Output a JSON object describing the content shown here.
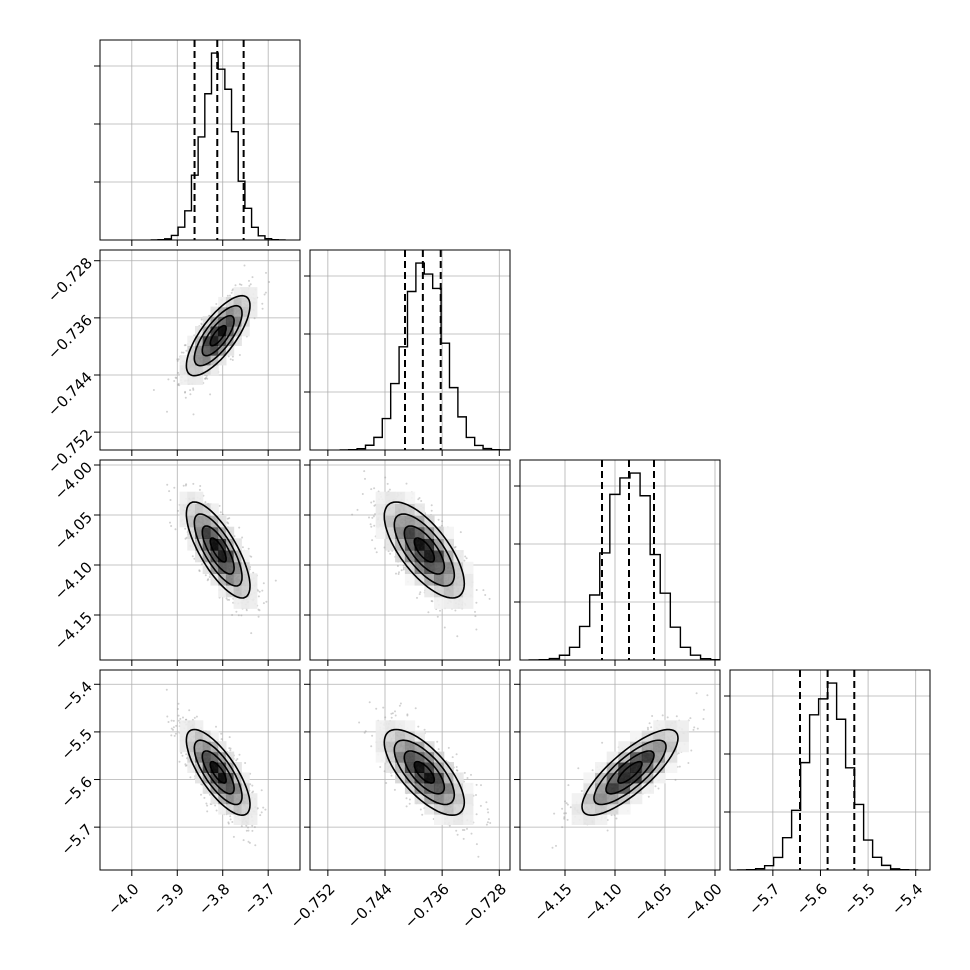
{
  "chart_data": {
    "type": "corner",
    "grid": true,
    "point_color": "#999999",
    "hist_color": "#000000",
    "parameters": [
      {
        "range": [
          -4.07,
          -3.63
        ],
        "ticks": [
          -4.0,
          -3.9,
          -3.8,
          -3.7
        ],
        "tick_labels": [
          "−4.0",
          "−3.9",
          "−3.8",
          "−3.7"
        ],
        "mean": -3.81,
        "sd": 0.035,
        "quantiles": [
          -3.862,
          -3.812,
          -3.754
        ]
      },
      {
        "range": [
          -0.7545,
          -0.7265
        ],
        "ticks": [
          -0.752,
          -0.744,
          -0.736,
          -0.728
        ],
        "tick_labels": [
          "−0.752",
          "−0.744",
          "−0.736",
          "−0.728"
        ],
        "mean": -0.7385,
        "sd": 0.0028,
        "quantiles": [
          -0.7412,
          -0.7387,
          -0.7362
        ]
      },
      {
        "range": [
          -4.195,
          -3.995
        ],
        "ticks": [
          -4.15,
          -4.1,
          -4.05,
          -4.0
        ],
        "tick_labels": [
          "−4.15",
          "−4.10",
          "−4.05",
          "−4.00"
        ],
        "mean": -4.085,
        "sd": 0.024,
        "quantiles": [
          -4.113,
          -4.086,
          -4.061
        ]
      },
      {
        "range": [
          -5.79,
          -5.37
        ],
        "ticks": [
          -5.7,
          -5.6,
          -5.5,
          -5.4
        ],
        "tick_labels": [
          "−5.7",
          "−5.6",
          "−5.5",
          "−5.4"
        ],
        "mean": -5.585,
        "sd": 0.045,
        "quantiles": [
          -5.643,
          -5.585,
          -5.529
        ]
      }
    ],
    "correlations": [
      {
        "row": 1,
        "col": 0,
        "rho": 0.75
      },
      {
        "row": 2,
        "col": 0,
        "rho": -0.75
      },
      {
        "row": 2,
        "col": 1,
        "rho": -0.7
      },
      {
        "row": 3,
        "col": 0,
        "rho": -0.75
      },
      {
        "row": 3,
        "col": 1,
        "rho": -0.7
      },
      {
        "row": 3,
        "col": 2,
        "rho": 0.8
      }
    ]
  }
}
